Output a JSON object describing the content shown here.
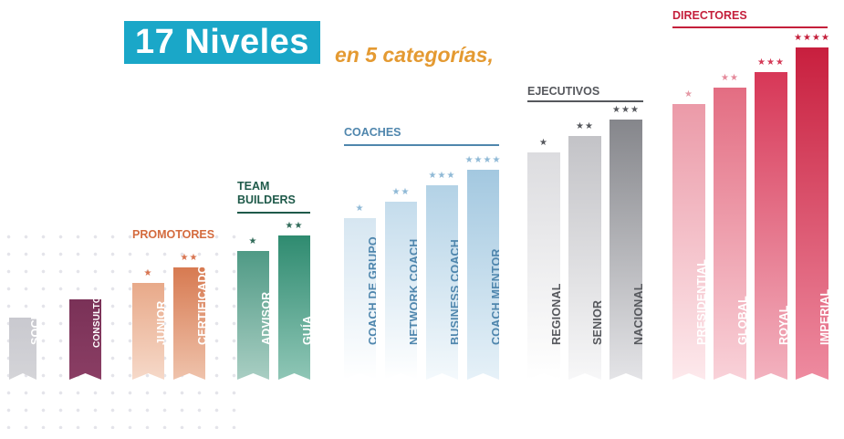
{
  "title": {
    "number_text": "17 Niveles",
    "subtitle": "en 5 categorías,"
  },
  "categories": [
    {
      "name": "PROMOTORES",
      "color": "#d46b3e"
    },
    {
      "name": "TEAM BUILDERS",
      "color": "#1f5a4a"
    },
    {
      "name": "COACHES",
      "color": "#4f86ad"
    },
    {
      "name": "EJECUTIVOS",
      "color": "#56585d"
    },
    {
      "name": "DIRECTORES",
      "color": "#c41f3b"
    }
  ],
  "levels": [
    {
      "label": "SOCIO",
      "category": "",
      "stars": 0,
      "rank": 1
    },
    {
      "label": "CONSULTOR",
      "category": "",
      "stars": 0,
      "rank": 2
    },
    {
      "label": "JUNIOR",
      "category": "PROMOTORES",
      "stars": 1,
      "rank": 3
    },
    {
      "label": "CERTIFICADO",
      "category": "PROMOTORES",
      "stars": 2,
      "rank": 4
    },
    {
      "label": "ADVISOR",
      "category": "TEAM BUILDERS",
      "stars": 1,
      "rank": 5
    },
    {
      "label": "GUÍA",
      "category": "TEAM BUILDERS",
      "stars": 2,
      "rank": 6
    },
    {
      "label": "COACH DE GRUPO",
      "category": "COACHES",
      "stars": 1,
      "rank": 7
    },
    {
      "label": "NETWORK COACH",
      "category": "COACHES",
      "stars": 2,
      "rank": 8
    },
    {
      "label": "BUSINESS COACH",
      "category": "COACHES",
      "stars": 3,
      "rank": 9
    },
    {
      "label": "COACH MENTOR",
      "category": "COACHES",
      "stars": 4,
      "rank": 10
    },
    {
      "label": "REGIONAL",
      "category": "EJECUTIVOS",
      "stars": 1,
      "rank": 11
    },
    {
      "label": "SENIOR",
      "category": "EJECUTIVOS",
      "stars": 2,
      "rank": 12
    },
    {
      "label": "NACIONAL",
      "category": "EJECUTIVOS",
      "stars": 3,
      "rank": 13
    },
    {
      "label": "PRESIDENTIAL",
      "category": "DIRECTORES",
      "stars": 1,
      "rank": 14
    },
    {
      "label": "GLOBAL",
      "category": "DIRECTORES",
      "stars": 2,
      "rank": 15
    },
    {
      "label": "ROYAL",
      "category": "DIRECTORES",
      "stars": 3,
      "rank": 16
    },
    {
      "label": "IMPERIAL",
      "category": "DIRECTORES",
      "stars": 4,
      "rank": 17
    }
  ]
}
